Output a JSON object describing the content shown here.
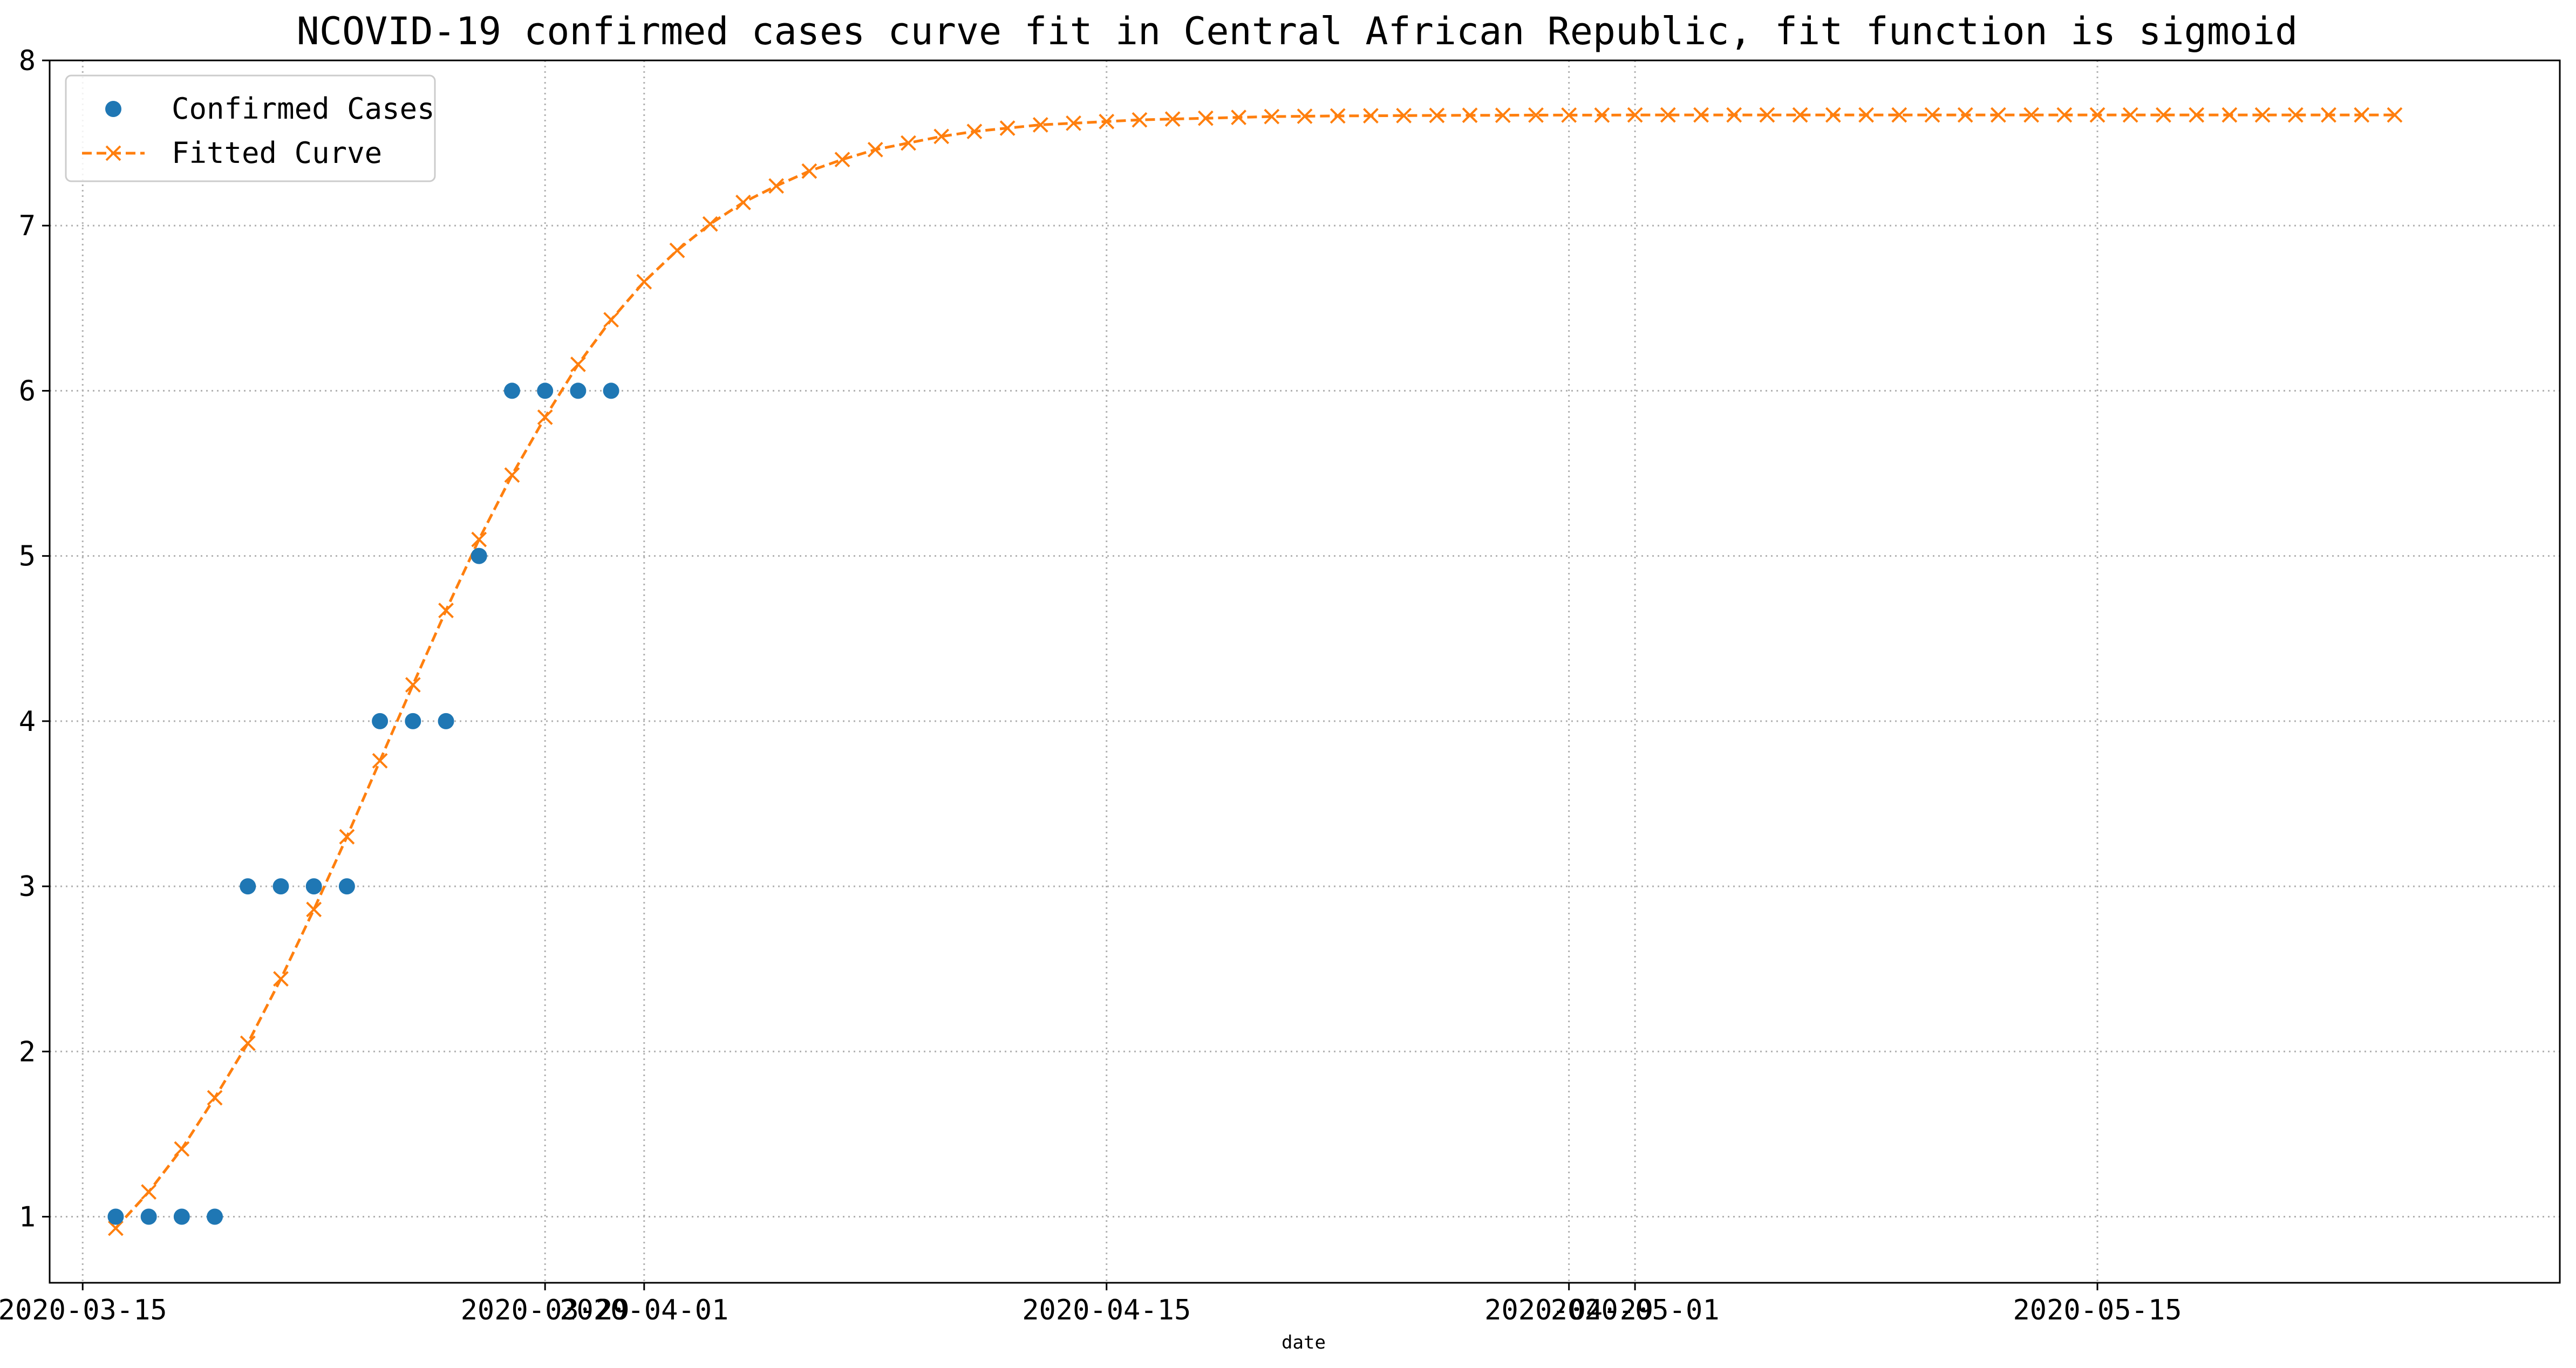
{
  "chart_data": {
    "type": "line",
    "title": "NCOVID-19 confirmed cases curve fit in Central African Republic, fit function is sigmoid",
    "xlabel": "date",
    "ylabel": "",
    "x_axis": {
      "type": "date",
      "range": [
        "2020-03-14",
        "2020-05-29"
      ],
      "ticks": [
        {
          "date": "2020-03-15",
          "label": "2020-03-15"
        },
        {
          "date": "2020-03-29",
          "label": "2020-03-29"
        },
        {
          "date": "2020-04-01",
          "label": "2020-04-01"
        },
        {
          "date": "2020-04-15",
          "label": "2020-04-15"
        },
        {
          "date": "2020-04-29",
          "label": "2020-04-29"
        },
        {
          "date": "2020-05-01",
          "label": "2020-05-01"
        },
        {
          "date": "2020-05-15",
          "label": "2020-05-15"
        }
      ]
    },
    "y_axis": {
      "range": [
        0.6,
        8
      ],
      "ticks": [
        1,
        2,
        3,
        4,
        5,
        6,
        7,
        8
      ]
    },
    "grid": true,
    "legend": {
      "position": "top-left",
      "entries": [
        "Confirmed Cases",
        "Fitted Curve"
      ]
    },
    "series": [
      {
        "name": "Confirmed Cases",
        "style": "points",
        "color": "#1f77b4",
        "x": [
          "2020-03-16",
          "2020-03-17",
          "2020-03-18",
          "2020-03-19",
          "2020-03-20",
          "2020-03-21",
          "2020-03-22",
          "2020-03-23",
          "2020-03-24",
          "2020-03-25",
          "2020-03-26",
          "2020-03-27",
          "2020-03-28",
          "2020-03-29",
          "2020-03-30",
          "2020-03-31"
        ],
        "values": [
          1,
          1,
          1,
          1,
          3,
          3,
          3,
          3,
          4,
          4,
          4,
          5,
          6,
          6,
          6,
          6
        ]
      },
      {
        "name": "Fitted Curve",
        "style": "dashed-line-x-markers",
        "color": "#ff7f0e",
        "x_start": "2020-03-16",
        "x_step_days": 1,
        "values": [
          0.93,
          1.15,
          1.41,
          1.72,
          2.05,
          2.44,
          2.86,
          3.3,
          3.76,
          4.22,
          4.67,
          5.1,
          5.49,
          5.84,
          6.16,
          6.43,
          6.66,
          6.85,
          7.01,
          7.14,
          7.24,
          7.33,
          7.4,
          7.46,
          7.5,
          7.54,
          7.57,
          7.59,
          7.61,
          7.62,
          7.63,
          7.64,
          7.645,
          7.65,
          7.655,
          7.66,
          7.662,
          7.664,
          7.665,
          7.666,
          7.667,
          7.668,
          7.668,
          7.669,
          7.669,
          7.669,
          7.67,
          7.67,
          7.67,
          7.67,
          7.67,
          7.67,
          7.67,
          7.67,
          7.67,
          7.67,
          7.67,
          7.67,
          7.67,
          7.67,
          7.67,
          7.67,
          7.67,
          7.67,
          7.67,
          7.67,
          7.67,
          7.67,
          7.67,
          7.67
        ]
      }
    ]
  }
}
